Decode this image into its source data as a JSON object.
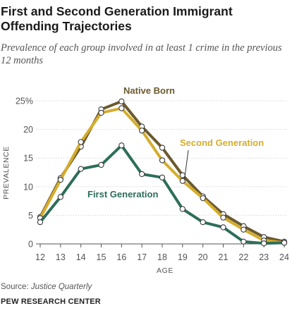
{
  "chart_data": {
    "type": "line",
    "title": "First and Second Generation Immigrant Offending Trajectories",
    "subtitle": "Prevalence of each group involved in at least 1 crime in the previous 12 months",
    "xlabel": "AGE",
    "ylabel": "PREVALENCE",
    "x": [
      12,
      13,
      14,
      15,
      16,
      17,
      18,
      19,
      20,
      21,
      22,
      23,
      24
    ],
    "ylim": [
      0,
      25
    ],
    "yticks": [
      0,
      5,
      10,
      15,
      20,
      25
    ],
    "ytick_labels": [
      "0",
      "5",
      "10",
      "15",
      "20",
      "25%"
    ],
    "grid": true,
    "series": [
      {
        "name": "Native Born",
        "color": "#6b5a2e",
        "values": [
          4.7,
          11.5,
          17,
          23.5,
          24.9,
          20.5,
          16.8,
          12,
          8.3,
          5.2,
          3.1,
          1.2,
          0.4
        ]
      },
      {
        "name": "Second Generation",
        "color": "#d4ad2c",
        "values": [
          4.5,
          11.2,
          17.8,
          22.9,
          23.7,
          19.8,
          14.6,
          11,
          8,
          4.6,
          2.5,
          0.6,
          0.2
        ]
      },
      {
        "name": "First Generation",
        "color": "#2d6e5a",
        "values": [
          3.8,
          8.2,
          13.1,
          13.8,
          17.2,
          12.2,
          11.6,
          6.1,
          3.8,
          2.9,
          0.4,
          0.1,
          0.2
        ]
      }
    ]
  },
  "footer": {
    "source_label": "Source:",
    "source_publication": "Justice Quarterly",
    "brand": "PEW RESEARCH CENTER"
  }
}
